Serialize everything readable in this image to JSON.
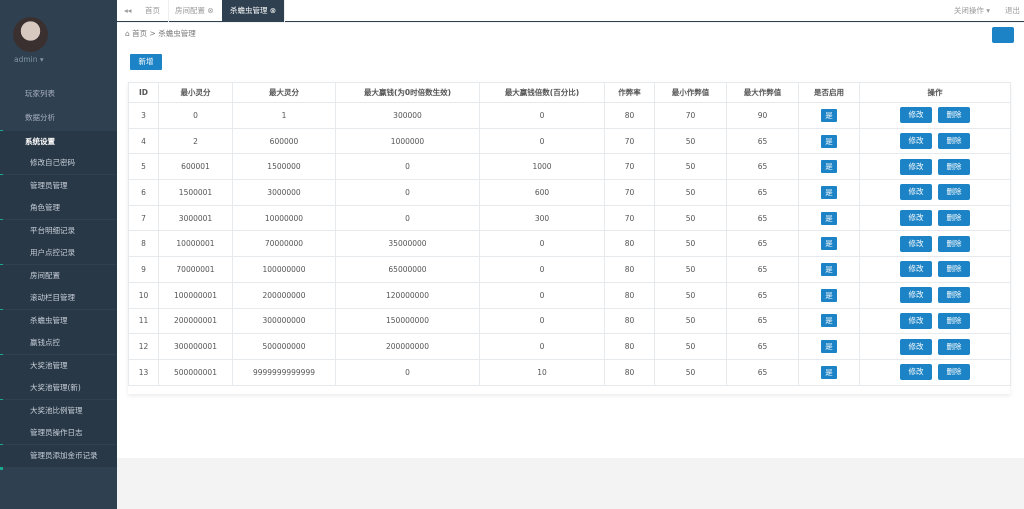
{
  "sidebar": {
    "user": "admin",
    "menu": [
      {
        "label": "玩家列表"
      },
      {
        "label": "数据分析"
      },
      {
        "label": "系统设置",
        "children": [
          "修改自己密码",
          "管理员管理",
          "角色管理",
          "平台明细记录",
          "用户点控记录",
          "房间配置",
          "滚动栏目管理",
          "杀蟾虫管理",
          "赢钱点控",
          "大奖池管理",
          "大奖池管理(新)",
          "大奖池比例管理",
          "管理员操作日志",
          "管理员添加金币记录"
        ]
      }
    ]
  },
  "tabs": [
    "首页",
    "房间配置",
    "杀蟾虫管理"
  ],
  "top_actions": [
    "关闭操作",
    "退出"
  ],
  "breadcrumb": [
    "首页",
    "杀蟾虫管理"
  ],
  "add_button": "新增",
  "table": {
    "headers": [
      "ID",
      "最小灵分",
      "最大灵分",
      "最大赢钱(为0时倍数生效)",
      "最大赢钱倍数(百分比)",
      "作弊率",
      "最小作弊值",
      "最大作弊值",
      "是否启用",
      "操作"
    ],
    "rows": [
      [
        3,
        0,
        1,
        300000,
        0,
        80,
        70,
        90,
        "是",
        "修改",
        "删除"
      ],
      [
        4,
        2,
        600000,
        1000000,
        0,
        70,
        50,
        65,
        "是",
        "修改",
        "删除"
      ],
      [
        5,
        600001,
        1500000,
        0,
        1000,
        70,
        50,
        65,
        "是",
        "修改",
        "删除"
      ],
      [
        6,
        1500001,
        3000000,
        0,
        600,
        70,
        50,
        65,
        "是",
        "修改",
        "删除"
      ],
      [
        7,
        3000001,
        10000000,
        0,
        300,
        70,
        50,
        65,
        "是",
        "修改",
        "删除"
      ],
      [
        8,
        10000001,
        70000000,
        35000000,
        0,
        80,
        50,
        65,
        "是",
        "修改",
        "删除"
      ],
      [
        9,
        70000001,
        100000000,
        65000000,
        0,
        80,
        50,
        65,
        "是",
        "修改",
        "删除"
      ],
      [
        10,
        100000001,
        200000000,
        120000000,
        0,
        80,
        50,
        65,
        "是",
        "修改",
        "删除"
      ],
      [
        11,
        200000001,
        300000000,
        150000000,
        0,
        80,
        50,
        65,
        "是",
        "修改",
        "删除"
      ],
      [
        12,
        300000001,
        500000000,
        200000000,
        0,
        80,
        50,
        65,
        "是",
        "修改",
        "删除"
      ],
      [
        13,
        500000001,
        9999999999999,
        0,
        10,
        80,
        50,
        65,
        "是",
        "修改",
        "删除"
      ]
    ]
  }
}
